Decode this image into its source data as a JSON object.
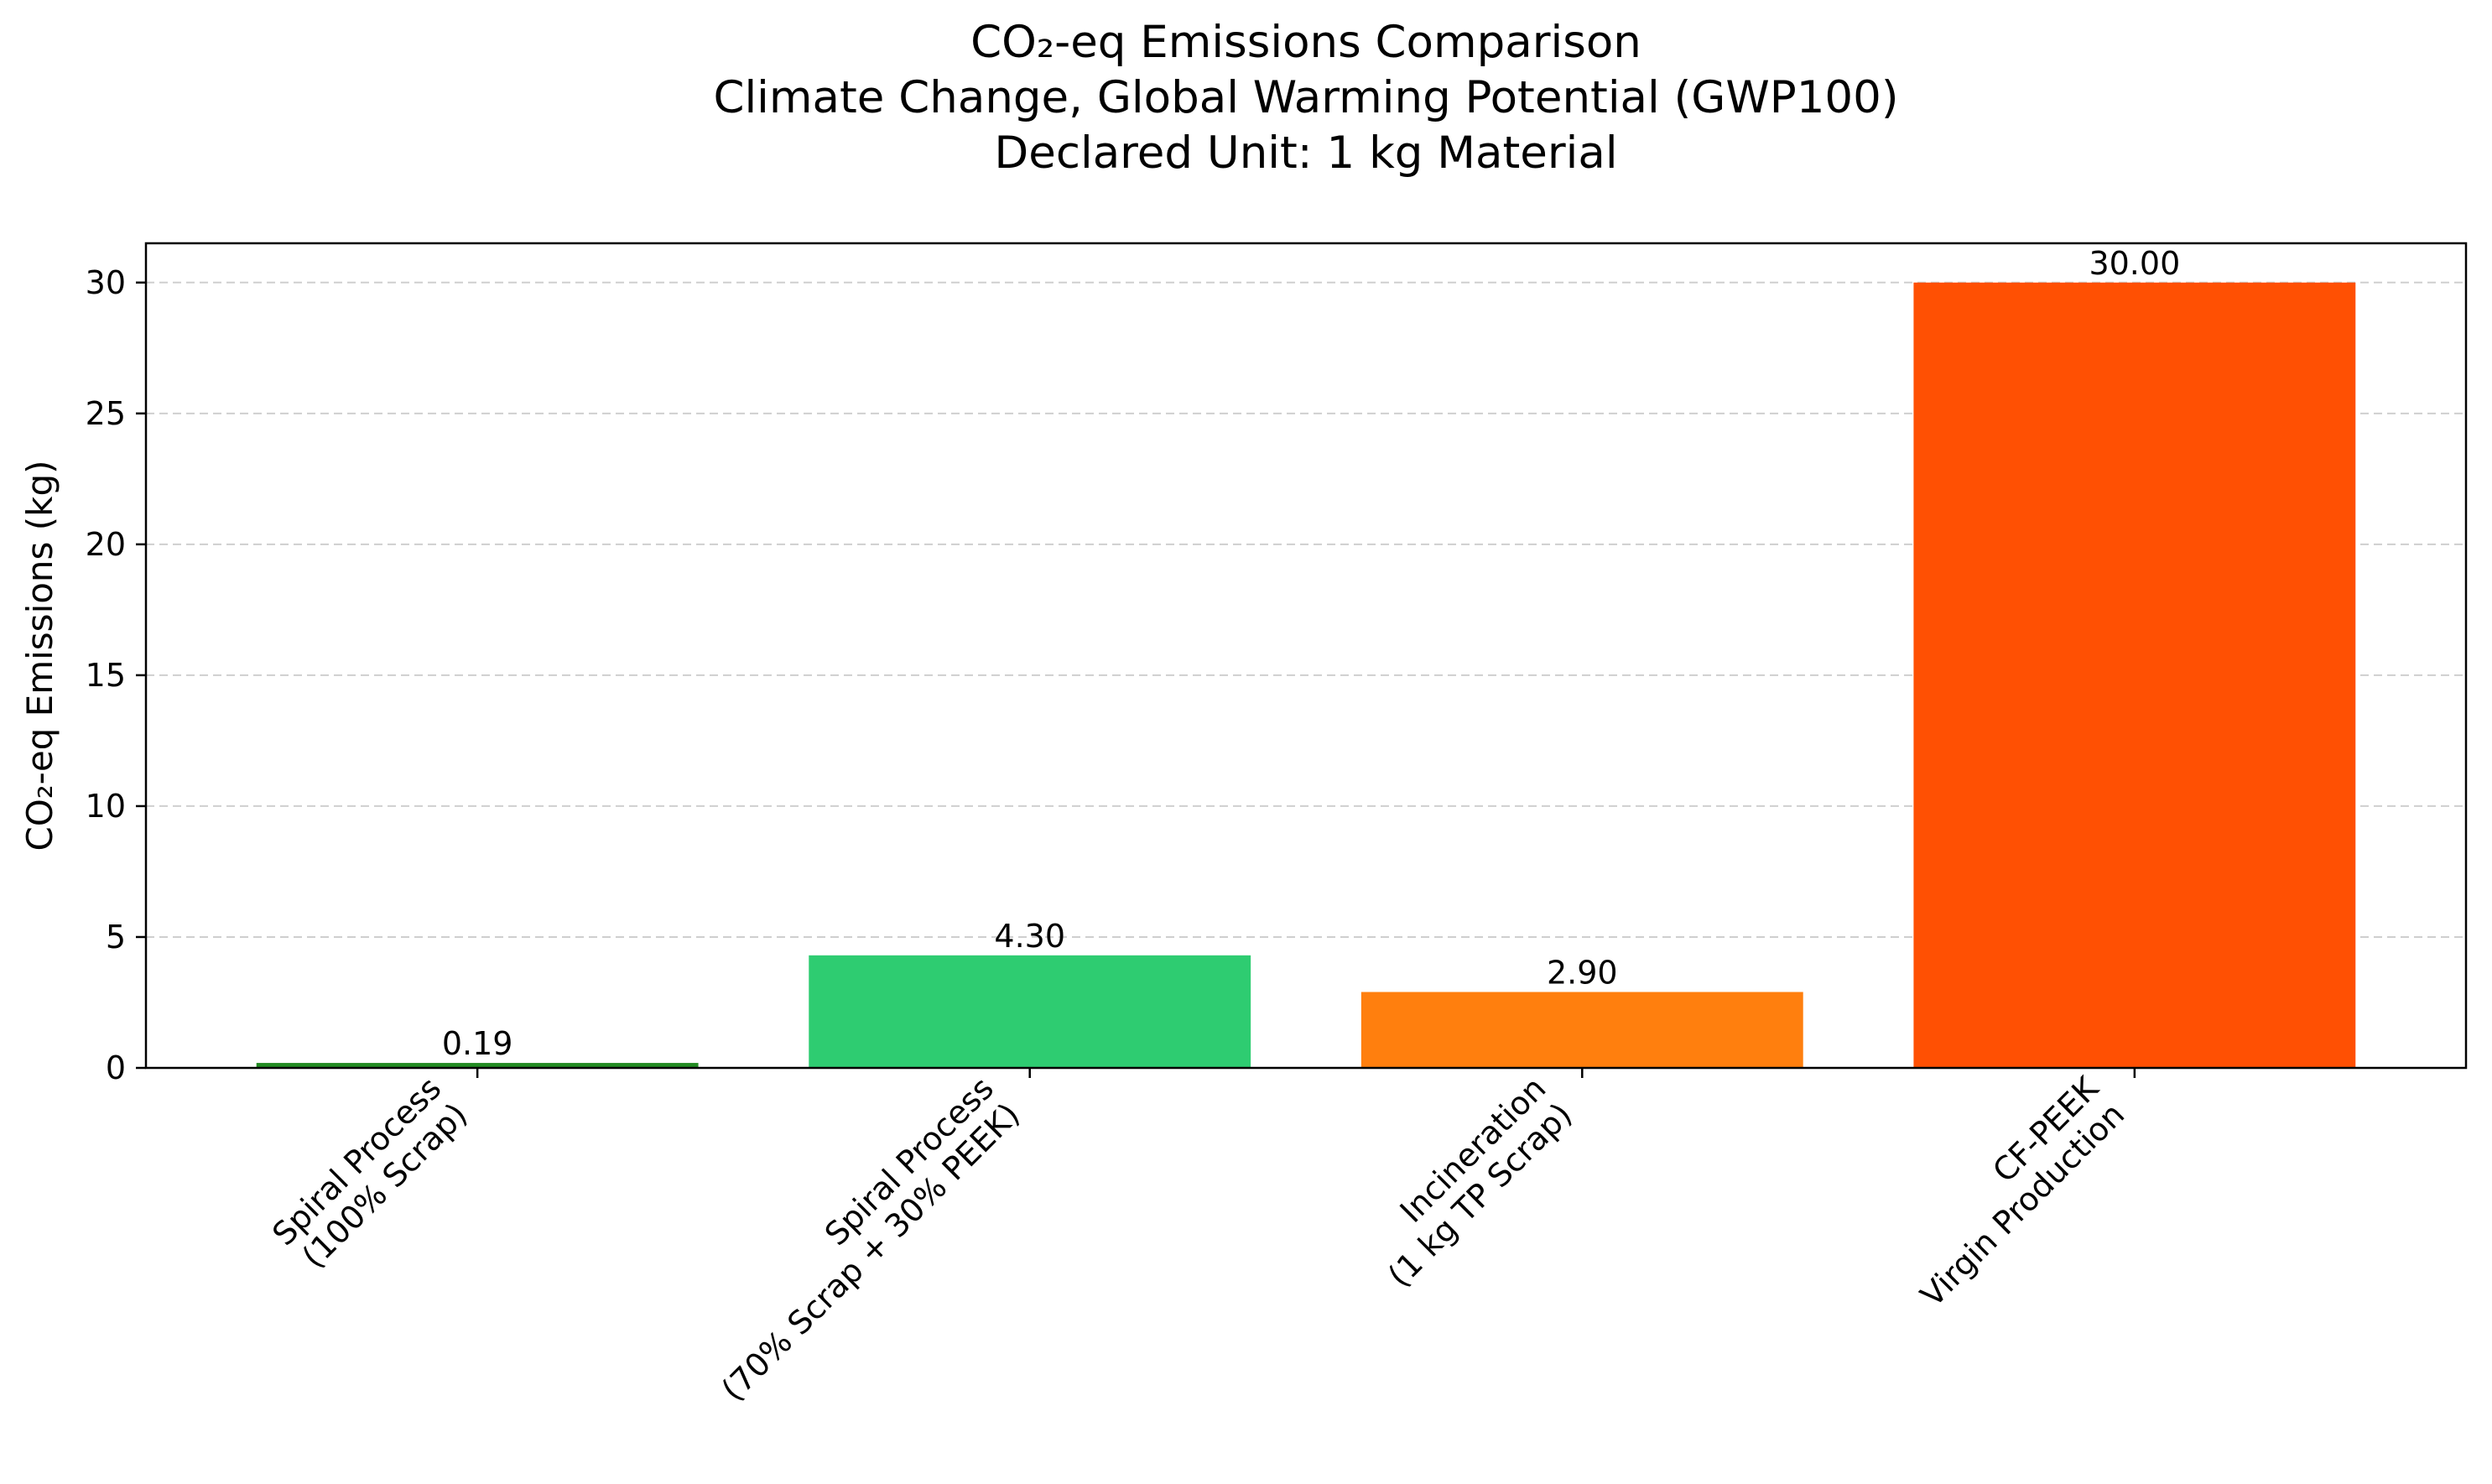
{
  "chart_data": {
    "type": "bar",
    "title_lines": [
      "CO₂-eq Emissions Comparison",
      "Climate Change, Global Warming Potential (GWP100)",
      "Declared Unit: 1 kg Material"
    ],
    "xlabel": "",
    "ylabel": "CO₂-eq Emissions (kg)",
    "ylim": [
      0,
      31.5
    ],
    "yticks": [
      0,
      5,
      10,
      15,
      20,
      25,
      30
    ],
    "grid": "y-dashed",
    "categories": [
      [
        "Spiral Process",
        "(100% Scrap)"
      ],
      [
        "Spiral Process",
        "(70% Scrap + 30% PEEK)"
      ],
      [
        "Incineration",
        "(1 kg TP Scrap)"
      ],
      [
        "CF-PEEK",
        "Virgin Production"
      ]
    ],
    "values": [
      0.19,
      4.3,
      2.9,
      30.0
    ],
    "value_labels": [
      "0.19",
      "4.30",
      "2.90",
      "30.00"
    ],
    "colors": [
      "#228b22",
      "#2ecc71",
      "#ff7f0e",
      "#ff5003"
    ]
  }
}
